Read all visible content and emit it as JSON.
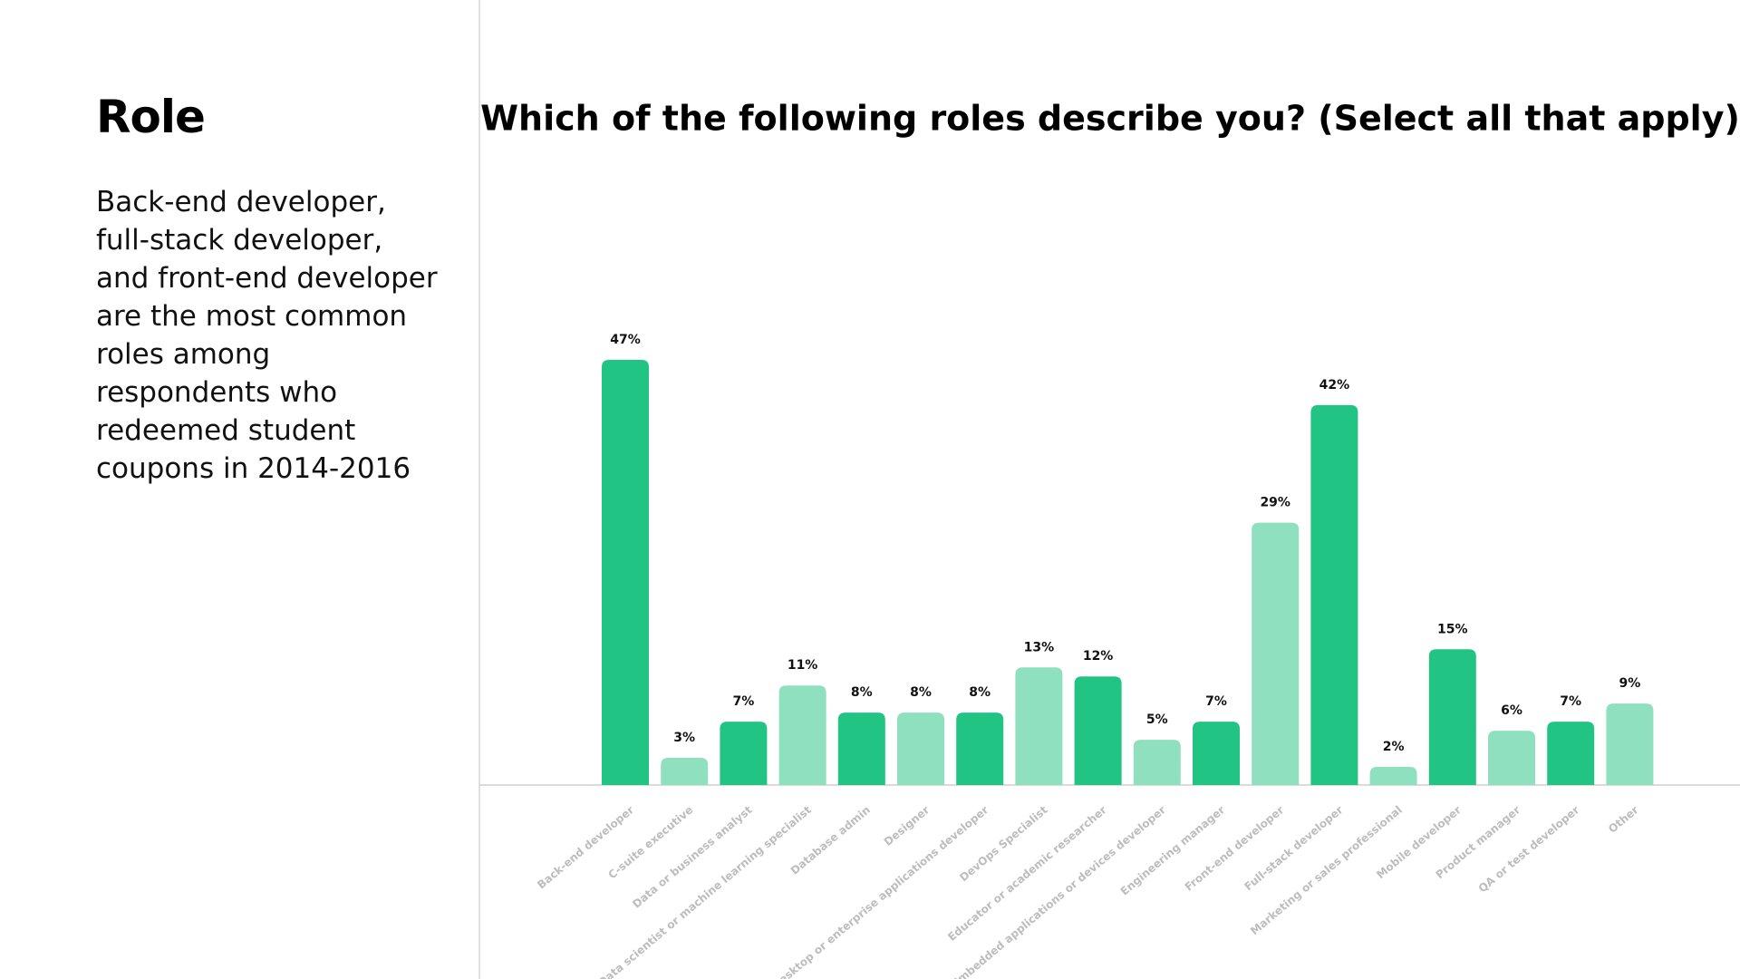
{
  "panel": {
    "heading": "Role",
    "text": "Back-end developer, full-stack developer, and front-end developer are the most common roles among respondents who redeemed student coupons in 2014-2016"
  },
  "chart_data": {
    "type": "bar",
    "title": "Which of the following roles describe you? (Select all that apply)",
    "categories": [
      "Back-end developer",
      "C-suite executive",
      "Data or business analyst",
      "Data scientist or machine learning specialist",
      "Database admin",
      "Designer",
      "Desktop or enterprise applications developer",
      "DevOps Specialist",
      "Educator or academic researcher",
      "Embedded applications or devices developer",
      "Engineering manager",
      "Front-end developer",
      "Full-stack developer",
      "Marketing or sales professional",
      "Mobile developer",
      "Product manager",
      "QA or test developer",
      "Other"
    ],
    "values": [
      47,
      3,
      7,
      11,
      8,
      8,
      8,
      13,
      12,
      5,
      7,
      29,
      42,
      2,
      15,
      6,
      7,
      9
    ],
    "value_labels": [
      "47%",
      "3%",
      "7%",
      "11%",
      "8%",
      "8%",
      "8%",
      "13%",
      "12%",
      "5%",
      "7%",
      "29%",
      "42%",
      "2%",
      "15%",
      "6%",
      "7%",
      "9%"
    ],
    "colors": [
      "#22c484",
      "#8fe0bf",
      "#22c484",
      "#8fe0bf",
      "#22c484",
      "#8fe0bf",
      "#22c484",
      "#8fe0bf",
      "#22c484",
      "#8fe0bf",
      "#22c484",
      "#8fe0bf",
      "#22c484",
      "#8fe0bf",
      "#22c484",
      "#8fe0bf",
      "#22c484",
      "#8fe0bf"
    ]
  }
}
